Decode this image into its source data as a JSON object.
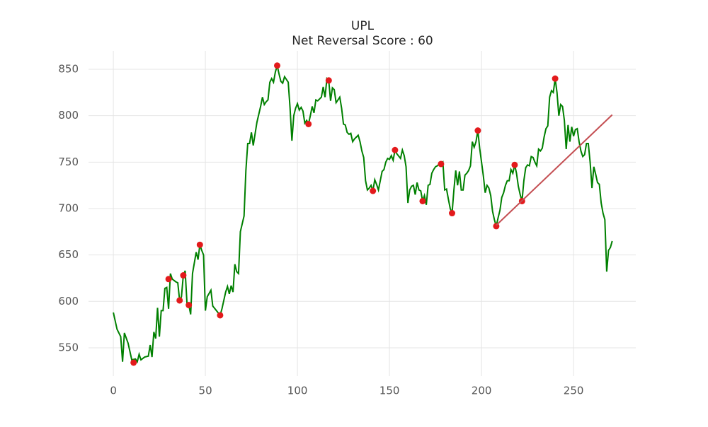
{
  "chart_data": {
    "type": "line",
    "title": "UPL",
    "subtitle": "Net Reversal Score : 60",
    "xlim": [
      -13.5,
      283.8
    ],
    "ylim": [
      519.5,
      869.8
    ],
    "xticks": [
      0,
      50,
      100,
      150,
      200,
      250
    ],
    "yticks": [
      550,
      600,
      650,
      700,
      750,
      800,
      850
    ],
    "grid": true,
    "series": [
      {
        "type": "line",
        "color": "#008000",
        "x": [
          0,
          2,
          4,
          5,
          6,
          8,
          10,
          12,
          13,
          14,
          15,
          17,
          19,
          20,
          21,
          22,
          23,
          24,
          25,
          26,
          27,
          28,
          29,
          30,
          31,
          32,
          34,
          35,
          36,
          37,
          38,
          39,
          40,
          41,
          42,
          43,
          45,
          46,
          47,
          48,
          49,
          50,
          51,
          53,
          54,
          56,
          58,
          59,
          61,
          62,
          63,
          64,
          65,
          66,
          67,
          68,
          69,
          71,
          72,
          73,
          74,
          75,
          76,
          78,
          80,
          81,
          82,
          83,
          84,
          85,
          86,
          87,
          88,
          89,
          90,
          91,
          92,
          93,
          95,
          96,
          97,
          98,
          99,
          100,
          101,
          102,
          103,
          104,
          105,
          106,
          107,
          108,
          109,
          110,
          111,
          112,
          113,
          114,
          115,
          116,
          117,
          118,
          119,
          120,
          121,
          123,
          124,
          125,
          126,
          127,
          128,
          129,
          130,
          131,
          133,
          134,
          135,
          136,
          137,
          138,
          139,
          140,
          141,
          142,
          143,
          144,
          145,
          146,
          147,
          148,
          149,
          150,
          151,
          152,
          153,
          154,
          156,
          157,
          158,
          159,
          160,
          161,
          162,
          163,
          164,
          165,
          166,
          167,
          168,
          169,
          170,
          171,
          172,
          173,
          174,
          175,
          176,
          177,
          178,
          179,
          180,
          181,
          182,
          183,
          184,
          185,
          186,
          187,
          188,
          189,
          190,
          191,
          192,
          193,
          194,
          195,
          196,
          197,
          198,
          199,
          200,
          201,
          202,
          203,
          204,
          205,
          206,
          207,
          208,
          209,
          210,
          211,
          212,
          213,
          214,
          215,
          216,
          217,
          218,
          219,
          220,
          221,
          222,
          223,
          224,
          225,
          226,
          227,
          228,
          229,
          230,
          231,
          232,
          233,
          234,
          235,
          236,
          237,
          238,
          239,
          240,
          241,
          242,
          243,
          244,
          245,
          246,
          247,
          248,
          249,
          250,
          251,
          252,
          253,
          254,
          255,
          256,
          257,
          258,
          259,
          260,
          261,
          262,
          263,
          264,
          265,
          266,
          267,
          268,
          269,
          270,
          271
        ],
        "values": [
          588,
          570,
          562,
          535,
          566,
          555,
          537,
          538,
          535,
          543,
          537,
          540,
          541,
          553,
          540,
          567,
          560,
          593,
          562,
          590,
          590,
          614,
          615,
          592,
          630,
          624,
          621,
          620,
          601,
          605,
          628,
          633,
          598,
          596,
          586,
          630,
          653,
          645,
          661,
          655,
          650,
          590,
          605,
          612,
          595,
          590,
          585,
          592,
          610,
          616,
          608,
          617,
          610,
          640,
          632,
          630,
          675,
          692,
          741,
          770,
          770,
          782,
          768,
          793,
          810,
          820,
          812,
          815,
          817,
          836,
          840,
          836,
          847,
          854,
          845,
          837,
          835,
          842,
          836,
          808,
          773,
          800,
          808,
          813,
          806,
          809,
          805,
          792,
          795,
          791,
          800,
          810,
          803,
          817,
          816,
          818,
          820,
          831,
          820,
          840,
          838,
          816,
          830,
          828,
          814,
          820,
          808,
          791,
          790,
          782,
          780,
          781,
          772,
          775,
          779,
          772,
          762,
          755,
          730,
          720,
          722,
          725,
          719,
          731,
          726,
          720,
          730,
          740,
          742,
          750,
          754,
          753,
          757,
          752,
          763,
          759,
          754,
          763,
          757,
          745,
          706,
          720,
          724,
          725,
          715,
          728,
          720,
          719,
          708,
          714,
          704,
          725,
          726,
          738,
          742,
          745,
          746,
          748,
          748,
          750,
          720,
          721,
          710,
          700,
          695,
          720,
          741,
          725,
          740,
          720,
          720,
          736,
          738,
          741,
          746,
          772,
          766,
          772,
          784,
          765,
          750,
          735,
          717,
          725,
          722,
          714,
          697,
          688,
          681,
          690,
          698,
          712,
          717,
          725,
          730,
          730,
          742,
          738,
          747,
          738,
          724,
          715,
          708,
          730,
          744,
          747,
          746,
          756,
          755,
          750,
          746,
          764,
          762,
          765,
          777,
          786,
          789,
          820,
          827,
          825,
          840,
          825,
          800,
          812,
          810,
          795,
          764,
          790,
          772,
          788,
          778,
          785,
          786,
          772,
          762,
          756,
          758,
          770,
          770,
          750,
          722,
          745,
          737,
          728,
          726,
          706,
          695,
          688,
          632,
          655,
          658,
          665
        ]
      },
      {
        "type": "scatter",
        "color": "#e31a1c",
        "x": [
          11,
          30,
          36,
          38,
          41,
          47,
          58,
          89,
          106,
          117,
          141,
          153,
          168,
          178,
          184,
          198,
          208,
          218,
          222,
          240
        ],
        "values": [
          534,
          624,
          601,
          628,
          596,
          661,
          585,
          854,
          791,
          838,
          719,
          763,
          708,
          748,
          695,
          784,
          681,
          747,
          708,
          840
        ]
      },
      {
        "type": "line",
        "color": "#c44e52",
        "x": [
          208,
          271
        ],
        "values": [
          682,
          801
        ]
      }
    ]
  }
}
